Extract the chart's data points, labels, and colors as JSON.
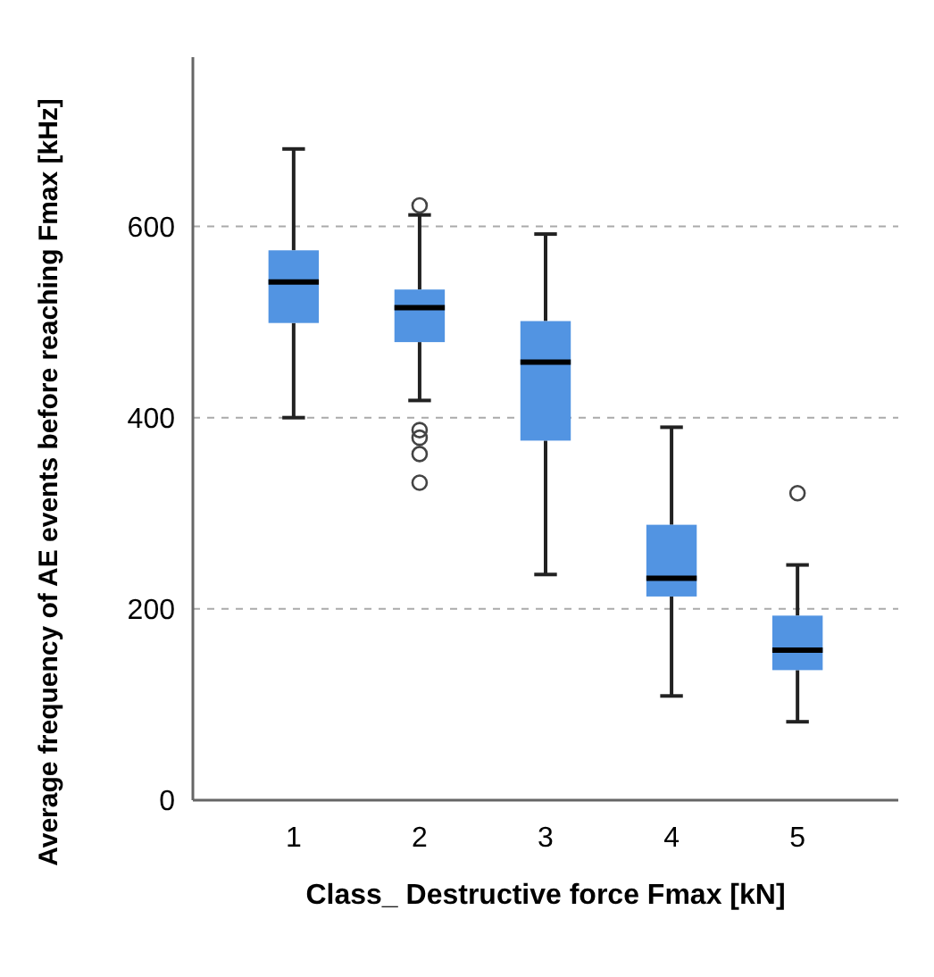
{
  "chart_data": {
    "type": "box",
    "xlabel": "Class_ Destructive force Fmax [kN]",
    "ylabel": "Average frequency of AE events before reaching Fmax [kHz]",
    "categories": [
      "1",
      "2",
      "3",
      "4",
      "5"
    ],
    "boxes": [
      {
        "low": 400,
        "q1": 499,
        "median": 542,
        "q3": 575,
        "high": 681
      },
      {
        "low": 418,
        "q1": 479,
        "median": 515,
        "q3": 534,
        "high": 612,
        "outliers": [
          622,
          387,
          379,
          362,
          332
        ]
      },
      {
        "low": 236,
        "q1": 376,
        "median": 458,
        "q3": 501,
        "high": 592
      },
      {
        "low": 109,
        "q1": 213,
        "median": 232,
        "q3": 288,
        "high": 390
      },
      {
        "low": 82,
        "q1": 136,
        "median": 157,
        "q3": 193,
        "high": 246,
        "outliers": [
          321
        ]
      }
    ],
    "color": "#5294e2",
    "ylim": [
      0,
      777
    ],
    "yticks": [
      0,
      200,
      400,
      600
    ],
    "grid": "y"
  }
}
